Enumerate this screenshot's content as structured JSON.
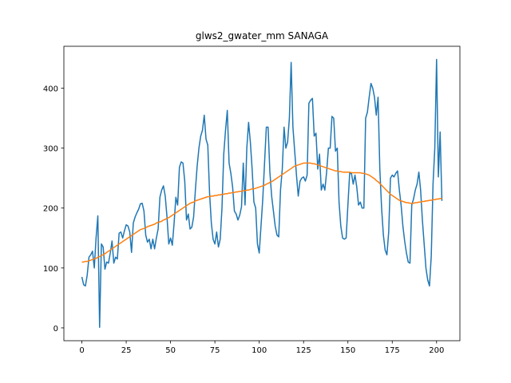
{
  "chart_data": {
    "type": "line",
    "title": "glws2_gwater_mm SANAGA",
    "x": [
      0,
      1,
      2,
      3,
      4,
      5,
      6,
      7,
      8,
      9,
      10,
      11,
      12,
      13,
      14,
      15,
      16,
      17,
      18,
      19,
      20,
      21,
      22,
      23,
      24,
      25,
      26,
      27,
      28,
      29,
      30,
      31,
      32,
      33,
      34,
      35,
      36,
      37,
      38,
      39,
      40,
      41,
      42,
      43,
      44,
      45,
      46,
      47,
      48,
      49,
      50,
      51,
      52,
      53,
      54,
      55,
      56,
      57,
      58,
      59,
      60,
      61,
      62,
      63,
      64,
      65,
      66,
      67,
      68,
      69,
      70,
      71,
      72,
      73,
      74,
      75,
      76,
      77,
      78,
      79,
      80,
      81,
      82,
      83,
      84,
      85,
      86,
      87,
      88,
      89,
      90,
      91,
      92,
      93,
      94,
      95,
      96,
      97,
      98,
      99,
      100,
      101,
      102,
      103,
      104,
      105,
      106,
      107,
      108,
      109,
      110,
      111,
      112,
      113,
      114,
      115,
      116,
      117,
      118,
      119,
      120,
      121,
      122,
      123,
      124,
      125,
      126,
      127,
      128,
      129,
      130,
      131,
      132,
      133,
      134,
      135,
      136,
      137,
      138,
      139,
      140,
      141,
      142,
      143,
      144,
      145,
      146,
      147,
      148,
      149,
      150,
      151,
      152,
      153,
      154,
      155,
      156,
      157,
      158,
      159,
      160,
      161,
      162,
      163,
      164,
      165,
      166,
      167,
      168,
      169,
      170,
      171,
      172,
      173,
      174,
      175,
      176,
      177,
      178,
      179,
      180,
      181,
      182,
      183,
      184,
      185,
      186,
      187,
      188,
      189,
      190,
      191,
      192,
      193,
      194,
      195,
      196,
      197,
      198,
      199,
      200,
      201,
      202,
      203
    ],
    "series": [
      {
        "color": "#1f77b4",
        "values": [
          85,
          72,
          70,
          88,
          118,
          122,
          128,
          100,
          150,
          187,
          1,
          140,
          135,
          98,
          110,
          108,
          125,
          145,
          108,
          118,
          115,
          158,
          160,
          150,
          162,
          172,
          170,
          160,
          126,
          175,
          185,
          192,
          198,
          207,
          208,
          195,
          155,
          143,
          148,
          132,
          148,
          132,
          150,
          165,
          218,
          230,
          237,
          220,
          185,
          140,
          150,
          138,
          175,
          218,
          205,
          268,
          277,
          275,
          245,
          180,
          190,
          165,
          168,
          185,
          230,
          270,
          300,
          320,
          330,
          355,
          315,
          305,
          225,
          175,
          148,
          140,
          160,
          135,
          148,
          200,
          290,
          330,
          363,
          275,
          258,
          235,
          195,
          190,
          180,
          188,
          202,
          275,
          205,
          300,
          343,
          310,
          265,
          210,
          200,
          140,
          125,
          170,
          215,
          275,
          335,
          335,
          260,
          220,
          195,
          170,
          155,
          152,
          230,
          265,
          335,
          300,
          310,
          350,
          443,
          335,
          295,
          255,
          220,
          245,
          250,
          252,
          245,
          255,
          375,
          380,
          383,
          320,
          325,
          265,
          290,
          230,
          240,
          230,
          260,
          300,
          300,
          353,
          350,
          295,
          300,
          210,
          170,
          150,
          148,
          150,
          205,
          258,
          258,
          240,
          255,
          235,
          205,
          210,
          200,
          200,
          350,
          360,
          385,
          408,
          400,
          385,
          355,
          385,
          265,
          200,
          155,
          130,
          122,
          160,
          250,
          255,
          252,
          258,
          262,
          230,
          205,
          170,
          145,
          125,
          110,
          108,
          205,
          215,
          230,
          240,
          260,
          230,
          180,
          140,
          100,
          80,
          70,
          120,
          240,
          300,
          448,
          252,
          327,
          212
        ]
      },
      {
        "color": "#ff7f0e",
        "values": [
          110,
          110,
          111,
          111,
          112,
          113,
          114,
          115,
          116,
          118,
          119,
          121,
          122,
          124,
          126,
          128,
          130,
          132,
          134,
          136,
          138,
          140,
          142,
          144,
          146,
          148,
          150,
          152,
          154,
          156,
          158,
          160,
          162,
          164,
          165,
          166,
          167,
          169,
          170,
          171,
          172,
          173,
          175,
          176,
          177,
          178,
          180,
          181,
          183,
          184,
          186,
          188,
          190,
          192,
          194,
          196,
          198,
          200,
          202,
          204,
          206,
          208,
          209,
          210,
          212,
          213,
          214,
          215,
          216,
          217,
          218,
          219,
          219,
          220,
          220,
          221,
          221,
          222,
          222,
          223,
          223,
          224,
          224,
          225,
          225,
          226,
          226,
          227,
          227,
          228,
          228,
          229,
          229,
          230,
          230,
          231,
          232,
          232,
          233,
          234,
          235,
          236,
          237,
          238,
          240,
          241,
          243,
          244,
          246,
          248,
          250,
          252,
          254,
          256,
          258,
          260,
          262,
          264,
          266,
          268,
          270,
          271,
          272,
          273,
          274,
          275,
          275,
          275,
          275,
          275,
          274,
          274,
          273,
          272,
          271,
          270,
          269,
          268,
          267,
          266,
          265,
          264,
          263,
          262,
          262,
          261,
          261,
          260,
          260,
          260,
          260,
          260,
          259,
          259,
          259,
          259,
          259,
          259,
          258,
          258,
          257,
          256,
          255,
          253,
          251,
          249,
          246,
          244,
          241,
          238,
          235,
          232,
          229,
          226,
          223,
          221,
          219,
          217,
          215,
          213,
          212,
          211,
          210,
          209,
          209,
          208,
          208,
          208,
          209,
          209,
          210,
          210,
          211,
          211,
          212,
          212,
          213,
          213,
          214,
          214,
          215,
          215,
          216,
          216
        ]
      }
    ],
    "xlim": [
      -10.15,
      213.15
    ],
    "ylim": [
      -21.4,
      470
    ],
    "xticks": [
      0,
      25,
      50,
      75,
      100,
      125,
      150,
      175,
      200
    ],
    "yticks": [
      0,
      100,
      200,
      300,
      400
    ]
  }
}
